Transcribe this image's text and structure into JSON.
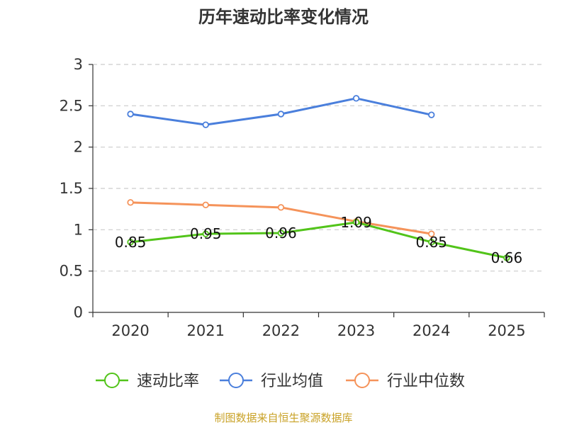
{
  "chart_data": {
    "type": "line",
    "title": "历年速动比率变化情况",
    "categories": [
      "2020",
      "2021",
      "2022",
      "2023",
      "2024",
      "2025"
    ],
    "ylim": [
      0,
      3
    ],
    "yticks": [
      "0",
      "0.5",
      "1",
      "1.5",
      "2",
      "2.5",
      "3"
    ],
    "grid": true,
    "legend_position": "bottom",
    "series": [
      {
        "name": "速动比率",
        "color": "#52c41a",
        "values": [
          0.85,
          0.95,
          0.96,
          1.09,
          0.85,
          0.66
        ],
        "labels": [
          "0.85",
          "0.95",
          "0.96",
          "1.09",
          "0.85",
          "0.66"
        ]
      },
      {
        "name": "行业均值",
        "color": "#4a7fdc",
        "values": [
          2.4,
          2.27,
          2.4,
          2.59,
          2.39,
          null
        ]
      },
      {
        "name": "行业中位数",
        "color": "#f5935a",
        "values": [
          1.33,
          1.3,
          1.27,
          1.1,
          0.95,
          null
        ]
      }
    ],
    "source": "制图数据来自恒生聚源数据库"
  }
}
